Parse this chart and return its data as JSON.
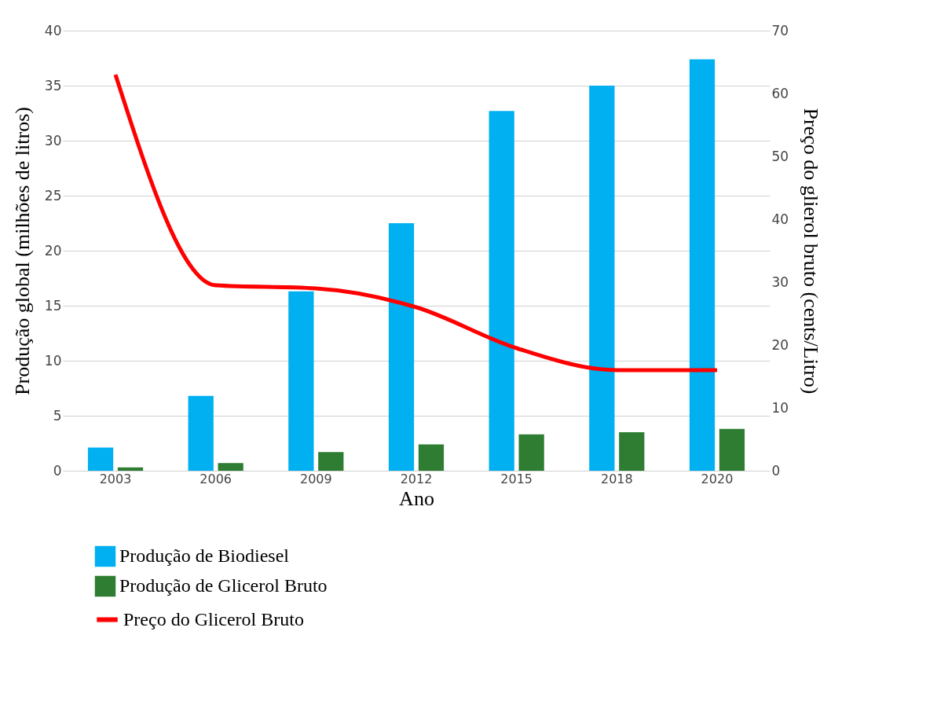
{
  "chart_data": {
    "type": "bar",
    "xlabel": "Ano",
    "ylabel": "Produção global (milhões  de litros)",
    "y2label": "Preço do glierol bruto (cents/Litro)",
    "categories": [
      "2003",
      "2006",
      "2009",
      "2012",
      "2015",
      "2018",
      "2020"
    ],
    "series": [
      {
        "name": "Produção de Biodiesel",
        "color": "#00b0f0",
        "values": [
          2.1,
          6.8,
          16.3,
          22.5,
          32.7,
          35.0,
          37.4
        ]
      },
      {
        "name": "Produção de Glicerol Bruto",
        "color": "#2e7d32",
        "values": [
          0.3,
          0.7,
          1.7,
          2.4,
          3.3,
          3.5,
          3.8
        ]
      },
      {
        "name": "Preço do Glicerol Bruto",
        "type": "line",
        "axis": "y2",
        "color": "#ff0000",
        "line_style": "solid",
        "values": [
          63,
          29.5,
          29,
          26,
          19.5,
          16,
          16
        ]
      }
    ],
    "ylim": [
      0,
      40
    ],
    "yticks": [
      0,
      5,
      10,
      15,
      20,
      25,
      30,
      35,
      40
    ],
    "y2lim": [
      0,
      70
    ],
    "y2ticks": [
      0,
      10,
      20,
      30,
      40,
      50,
      60,
      70
    ],
    "grid": "y",
    "legend": "bottom",
    "marker": "none"
  }
}
